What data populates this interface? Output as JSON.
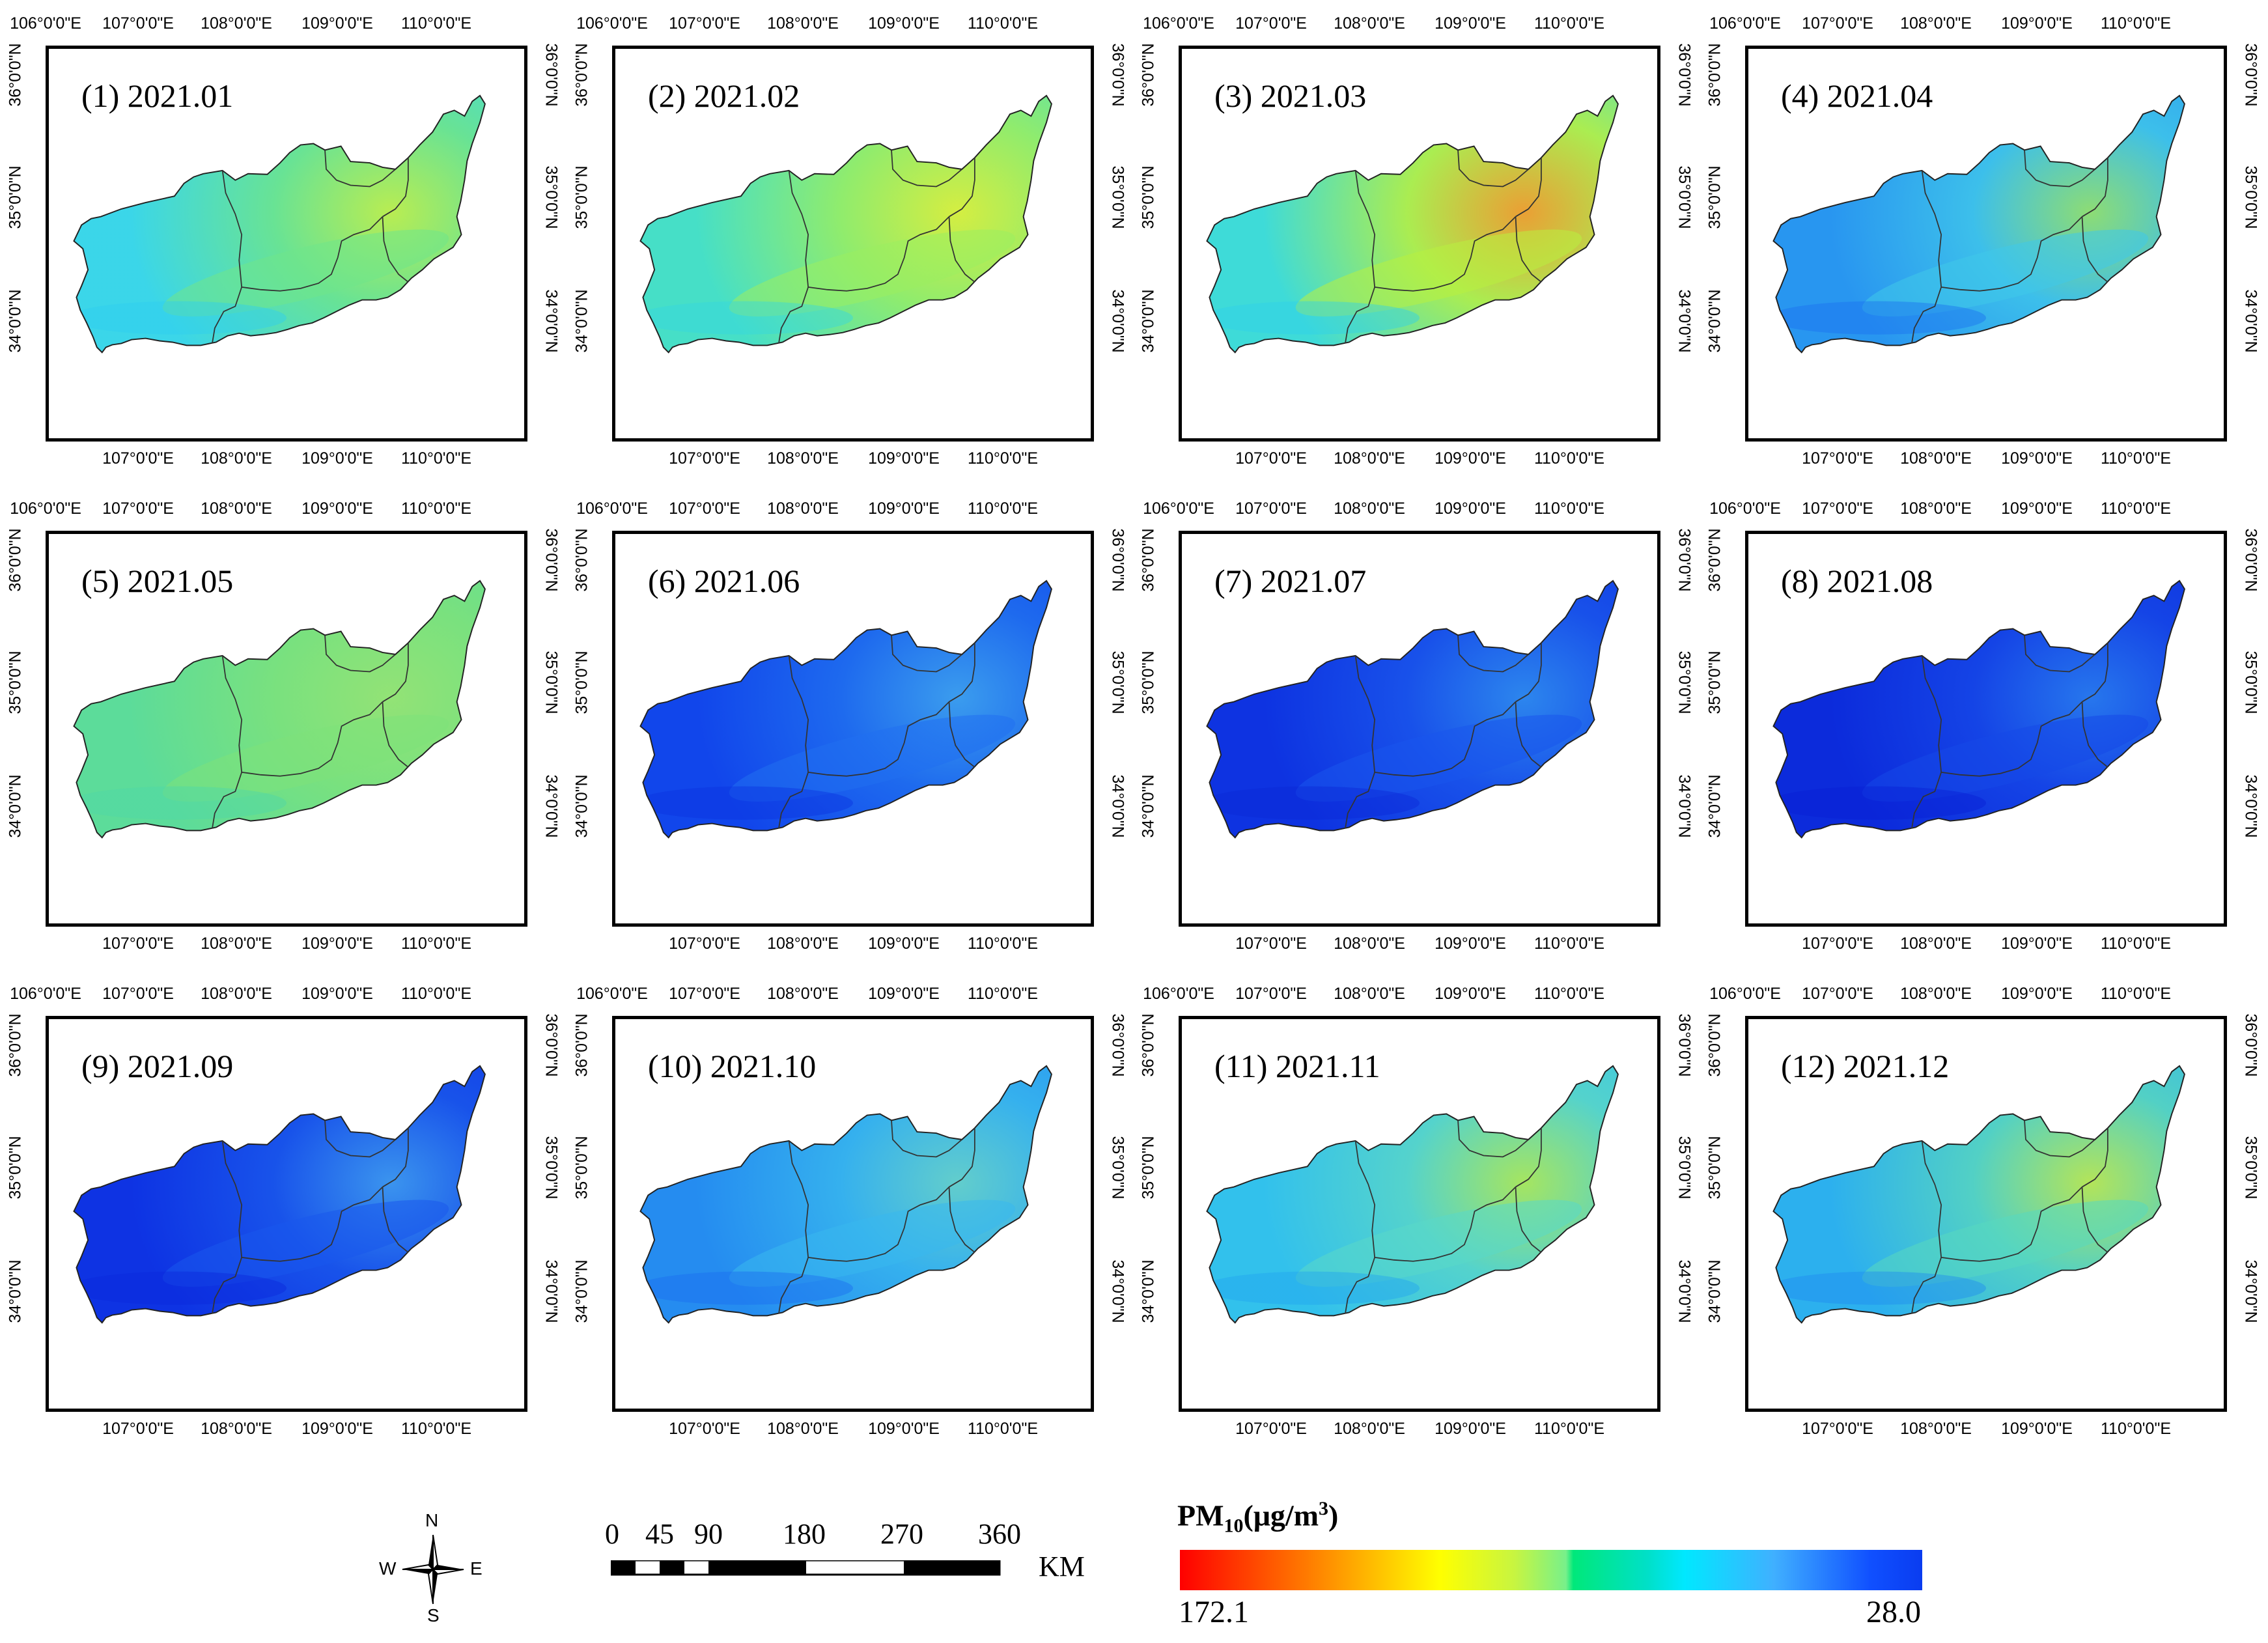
{
  "panels": [
    {
      "label": "(1) 2021.01",
      "fill": [
        "#2fcff0",
        "#3cd7e8",
        "#6fe58a",
        "#c8f040"
      ]
    },
    {
      "label": "(2) 2021.02",
      "fill": [
        "#35d8e0",
        "#48e0c4",
        "#9aee60",
        "#e6f030"
      ]
    },
    {
      "label": "(3) 2021.03",
      "fill": [
        "#2fd0ec",
        "#40dcd6",
        "#b8f040",
        "#ff9a20"
      ]
    },
    {
      "label": "(4) 2021.04",
      "fill": [
        "#1b70f0",
        "#2a9af0",
        "#40c8ea",
        "#9ae866"
      ]
    },
    {
      "label": "(5) 2021.05",
      "fill": [
        "#4ed8a8",
        "#5edc98",
        "#7ee27a",
        "#9ae470"
      ]
    },
    {
      "label": "(6) 2021.06",
      "fill": [
        "#0a32e0",
        "#1248ec",
        "#2070f0",
        "#40a8f0"
      ]
    },
    {
      "label": "(7) 2021.07",
      "fill": [
        "#0a28d8",
        "#0e34e2",
        "#1a56ec",
        "#3090f0"
      ]
    },
    {
      "label": "(8) 2021.08",
      "fill": [
        "#0820d4",
        "#0c2cdc",
        "#1648e8",
        "#2a80f0"
      ]
    },
    {
      "label": "(9) 2021.09",
      "fill": [
        "#0a28dc",
        "#0e34e4",
        "#1a58ec",
        "#40a0f0"
      ]
    },
    {
      "label": "(10) 2021.10",
      "fill": [
        "#1a6cf0",
        "#2690f0",
        "#38b8ee",
        "#6ad8c8"
      ]
    },
    {
      "label": "(11) 2021.11",
      "fill": [
        "#22a4f0",
        "#34c4ec",
        "#5ad8c8",
        "#b4ec50"
      ]
    },
    {
      "label": "(12) 2021.12",
      "fill": [
        "#1e8cf0",
        "#2eb4ee",
        "#58d8c0",
        "#c4ee48"
      ]
    }
  ],
  "axes": {
    "top_lon_labels": [
      "106°0'0\"E",
      "107°0'0\"E",
      "108°0'0\"E",
      "109°0'0\"E",
      "110°0'0\"E"
    ],
    "bottom_lon_labels": [
      "107°0'0\"E",
      "108°0'0\"E",
      "109°0'0\"E",
      "110°0'0\"E"
    ],
    "left_lat_labels": [
      "36°0'0\"N",
      "35°0'0\"N",
      "34°0'0\"N"
    ],
    "right_lat_labels": [
      "36°0'0\"N",
      "35°0'0\"N",
      "34°0'0\"N"
    ]
  },
  "compass": {
    "n": "N",
    "s": "S",
    "e": "E",
    "w": "W"
  },
  "scale_bar": {
    "labels": [
      "0",
      "45",
      "90",
      "180",
      "270",
      "360"
    ],
    "unit": "KM"
  },
  "colorbar": {
    "title_main": "PM",
    "title_sub": "10",
    "title_mid": "(μg/m",
    "title_sup": "3",
    "title_end": ")",
    "min_label": "172.1",
    "max_label": "28.0",
    "colors": [
      "#ff0000",
      "#ffff00",
      "#00e87a",
      "#00e8ff",
      "#0a3cf0"
    ]
  }
}
